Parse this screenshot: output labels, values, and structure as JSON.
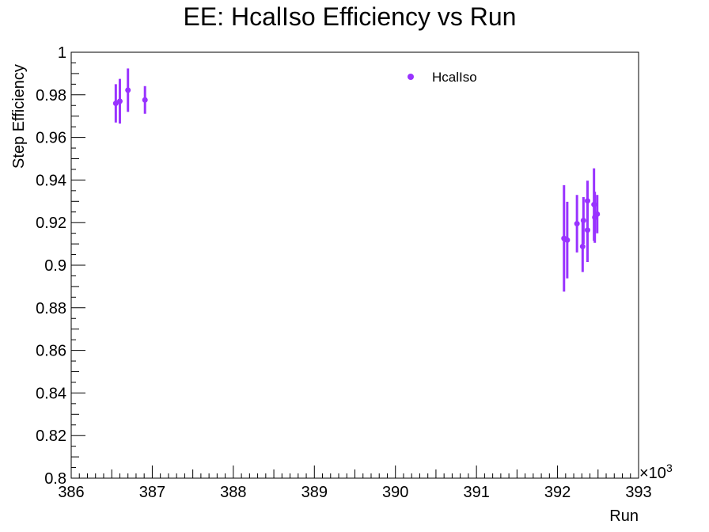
{
  "chart_data": {
    "type": "scatter",
    "title": "EE: HcalIso Efficiency vs Run",
    "xlabel": "Run",
    "ylabel": "Step Efficiency",
    "x_exponent_label": "×10",
    "x_exponent_power": "3",
    "xlim": [
      386,
      393
    ],
    "ylim": [
      0.8,
      1.0
    ],
    "x_tick_labels": [
      "386",
      "387",
      "388",
      "389",
      "390",
      "391",
      "392",
      "393"
    ],
    "y_tick_labels": [
      "0.8",
      "0.82",
      "0.84",
      "0.86",
      "0.88",
      "0.9",
      "0.92",
      "0.94",
      "0.96",
      "0.98",
      "1"
    ],
    "x_ticks": [
      386,
      387,
      388,
      389,
      390,
      391,
      392,
      393
    ],
    "y_ticks": [
      0.8,
      0.82,
      0.84,
      0.86,
      0.88,
      0.9,
      0.92,
      0.94,
      0.96,
      0.98,
      1.0
    ],
    "legend_position": "top-right",
    "color": "#9933ff",
    "series": [
      {
        "name": "HcalIso",
        "points": [
          {
            "x": 386.55,
            "y": 0.976,
            "err": 0.009
          },
          {
            "x": 386.6,
            "y": 0.977,
            "err": 0.0105
          },
          {
            "x": 386.7,
            "y": 0.9822,
            "err": 0.0102
          },
          {
            "x": 386.91,
            "y": 0.9776,
            "err": 0.0065
          },
          {
            "x": 392.08,
            "y": 0.9126,
            "err": 0.025
          },
          {
            "x": 392.12,
            "y": 0.9118,
            "err": 0.018
          },
          {
            "x": 392.24,
            "y": 0.9195,
            "err": 0.0135
          },
          {
            "x": 392.31,
            "y": 0.9088,
            "err": 0.012
          },
          {
            "x": 392.32,
            "y": 0.921,
            "err": 0.011
          },
          {
            "x": 392.37,
            "y": 0.9165,
            "err": 0.015
          },
          {
            "x": 392.37,
            "y": 0.9302,
            "err": 0.0095
          },
          {
            "x": 392.45,
            "y": 0.9285,
            "err": 0.017
          },
          {
            "x": 392.46,
            "y": 0.9225,
            "err": 0.012
          },
          {
            "x": 392.49,
            "y": 0.924,
            "err": 0.009
          }
        ]
      }
    ]
  }
}
